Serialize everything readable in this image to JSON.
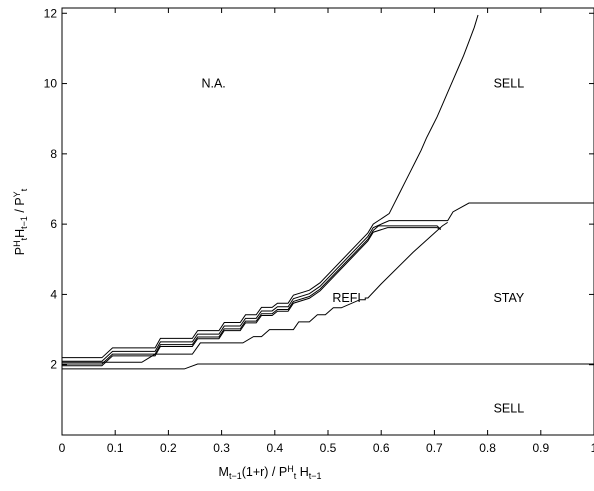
{
  "chart_data": {
    "type": "line",
    "xlabel": "M_{t−1}(1+r) / P^H_t H_{t−1}",
    "ylabel": "P^H_t H_{t−1} / P^Y_t",
    "xlabel_parts": [
      {
        "text": "M",
        "style": "normal"
      },
      {
        "text": "t−1",
        "style": "sub"
      },
      {
        "text": "(1+r) / P",
        "style": "normal"
      },
      {
        "text": "H",
        "style": "sup"
      },
      {
        "text": "t",
        "style": "sub"
      },
      {
        "text": " H",
        "style": "normal"
      },
      {
        "text": "t−1",
        "style": "sub"
      }
    ],
    "ylabel_parts": [
      {
        "text": "P",
        "style": "normal"
      },
      {
        "text": "H",
        "style": "sup"
      },
      {
        "text": "t",
        "style": "sub"
      },
      {
        "text": "H",
        "style": "normal"
      },
      {
        "text": "t−1",
        "style": "sub"
      },
      {
        "text": " / P",
        "style": "normal"
      },
      {
        "text": "Y",
        "style": "sup"
      },
      {
        "text": "t",
        "style": "sub"
      }
    ],
    "xlim": [
      0,
      1
    ],
    "ylim": [
      0,
      12.15
    ],
    "xticks": [
      0,
      0.1,
      0.2,
      0.3,
      0.4,
      0.5,
      0.6,
      0.7,
      0.8,
      0.9,
      1
    ],
    "xtick_labels": [
      "0",
      "0.1",
      "0.2",
      "0.3",
      "0.4",
      "0.5",
      "0.6",
      "0.7",
      "0.8",
      "0.9",
      "1"
    ],
    "yticks": [
      0,
      2,
      4,
      6,
      8,
      10,
      12
    ],
    "ytick_labels": [
      "",
      "2",
      "4",
      "6",
      "8",
      "10",
      "12"
    ],
    "grid": false,
    "line_color": "#000000",
    "annotations": [
      {
        "text": "N.A.",
        "x": 0.285,
        "y": 10.0
      },
      {
        "text": "SELL",
        "x": 0.84,
        "y": 10.0
      },
      {
        "text": "REFI",
        "x": 0.535,
        "y": 3.9
      },
      {
        "text": "STAY",
        "x": 0.84,
        "y": 3.9
      },
      {
        "text": "SELL",
        "x": 0.84,
        "y": 0.75
      }
    ],
    "series": [
      {
        "x": [
          0,
          0.005,
          0.075,
          0.095,
          0.175,
          0.185,
          0.245,
          0.255,
          0.295,
          0.305,
          0.335,
          0.345,
          0.365,
          0.375,
          0.395,
          0.405,
          0.425,
          0.435,
          0.465,
          0.485,
          0.575,
          0.585,
          0.615,
          0.625,
          0.635,
          0.645,
          0.655,
          0.665,
          0.675,
          0.685,
          0.695,
          0.705,
          0.715,
          0.725,
          0.735,
          0.745,
          0.755,
          0.765,
          0.775,
          0.782
        ],
        "y": [
          2.2,
          2.2,
          2.2,
          2.48,
          2.48,
          2.75,
          2.75,
          2.97,
          2.97,
          3.2,
          3.2,
          3.42,
          3.42,
          3.63,
          3.63,
          3.75,
          3.75,
          3.98,
          4.12,
          4.33,
          5.75,
          6.0,
          6.3,
          6.6,
          6.9,
          7.2,
          7.5,
          7.8,
          8.1,
          8.45,
          8.75,
          9.05,
          9.4,
          9.75,
          10.1,
          10.45,
          10.8,
          11.2,
          11.6,
          11.95
        ]
      },
      {
        "x": [
          0,
          0.075,
          0.095,
          0.175,
          0.185,
          0.245,
          0.255,
          0.295,
          0.305,
          0.335,
          0.345,
          0.365,
          0.375,
          0.395,
          0.405,
          0.425,
          0.435,
          0.465,
          0.485,
          0.575,
          0.585,
          0.615,
          0.725,
          0.735,
          0.765,
          1.0
        ],
        "y": [
          2.1,
          2.1,
          2.38,
          2.38,
          2.65,
          2.65,
          2.87,
          2.87,
          3.1,
          3.1,
          3.32,
          3.32,
          3.53,
          3.53,
          3.65,
          3.65,
          3.88,
          4.02,
          4.23,
          5.65,
          5.9,
          6.1,
          6.1,
          6.35,
          6.6,
          6.6
        ]
      },
      {
        "x": [
          0,
          0.075,
          0.095,
          0.175,
          0.185,
          0.245,
          0.255,
          0.295,
          0.305,
          0.335,
          0.345,
          0.365,
          0.375,
          0.395,
          0.405,
          0.425,
          0.435,
          0.465,
          0.485,
          0.575,
          0.585,
          0.595,
          0.705,
          0.712
        ],
        "y": [
          2.02,
          2.02,
          2.3,
          2.3,
          2.57,
          2.57,
          2.79,
          2.79,
          3.02,
          3.02,
          3.24,
          3.24,
          3.45,
          3.45,
          3.57,
          3.57,
          3.8,
          3.94,
          4.15,
          5.57,
          5.82,
          5.95,
          5.95,
          5.85
        ]
      },
      {
        "x": [
          0,
          0.075,
          0.095,
          0.175,
          0.185,
          0.245,
          0.255,
          0.295,
          0.305,
          0.335,
          0.345,
          0.365,
          0.375,
          0.395,
          0.405,
          0.425,
          0.435,
          0.465,
          0.485,
          0.575,
          0.585,
          0.612,
          0.705,
          0.712
        ],
        "y": [
          1.97,
          1.97,
          2.25,
          2.25,
          2.52,
          2.52,
          2.74,
          2.74,
          2.97,
          2.97,
          3.19,
          3.19,
          3.4,
          3.4,
          3.52,
          3.52,
          3.75,
          3.89,
          4.1,
          5.52,
          5.77,
          5.9,
          5.9,
          5.85
        ]
      },
      {
        "x": [
          0,
          0.15,
          0.175,
          0.245,
          0.26,
          0.34,
          0.36,
          0.375,
          0.39,
          0.435,
          0.445,
          0.465,
          0.48,
          0.495,
          0.51,
          0.525,
          0.56,
          0.57,
          0.57,
          0.575,
          0.6,
          0.66,
          0.715,
          0.725
        ],
        "y": [
          2.07,
          2.07,
          2.3,
          2.3,
          2.62,
          2.62,
          2.8,
          2.8,
          3.0,
          3.0,
          3.22,
          3.22,
          3.42,
          3.42,
          3.62,
          3.62,
          3.85,
          3.85,
          3.9,
          3.9,
          4.3,
          5.2,
          5.95,
          6.05
        ]
      },
      {
        "x": [
          0,
          0.23,
          0.255,
          1.0
        ],
        "y": [
          1.88,
          1.88,
          2.02,
          2.02
        ]
      }
    ]
  }
}
